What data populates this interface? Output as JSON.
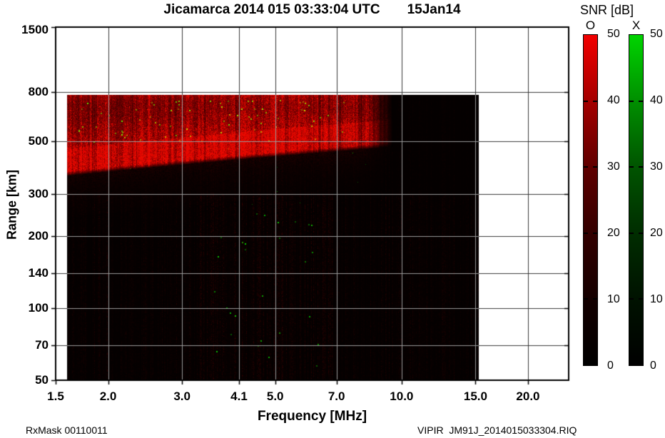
{
  "chart_data": {
    "type": "heatmap",
    "title": "Jicamarca 2014 015 03:33:04 UTC",
    "date_label": "15Jan14",
    "xlabel": "Frequency [MHz]",
    "ylabel": "Range [km]",
    "x_scale": "log",
    "y_scale": "log",
    "xlim": [
      1.5,
      25
    ],
    "ylim": [
      50,
      1500
    ],
    "grid": true,
    "x_ticks": [
      {
        "value": 1.5,
        "label": "1.5"
      },
      {
        "value": 2.0,
        "label": "2.0"
      },
      {
        "value": 3.0,
        "label": "3.0"
      },
      {
        "value": 4.1,
        "label": "4.1"
      },
      {
        "value": 5.0,
        "label": "5.0"
      },
      {
        "value": 7.0,
        "label": "7.0"
      },
      {
        "value": 10.0,
        "label": "10.0"
      },
      {
        "value": 15.0,
        "label": "15.0"
      },
      {
        "value": 20.0,
        "label": "20.0"
      }
    ],
    "y_ticks": [
      {
        "value": 50,
        "label": "50"
      },
      {
        "value": 70,
        "label": "70"
      },
      {
        "value": 100,
        "label": "100"
      },
      {
        "value": 140,
        "label": "140"
      },
      {
        "value": 200,
        "label": "200"
      },
      {
        "value": 300,
        "label": "300"
      },
      {
        "value": 500,
        "label": "500"
      },
      {
        "value": 800,
        "label": "800"
      },
      {
        "value": 1500,
        "label": "1500"
      }
    ],
    "plot_bg_color": "#ffffff",
    "data_bg_color": "#000000",
    "grid_color_on_white": "#3a3a3a",
    "grid_color_on_data": "#9a9a9a",
    "frame_color": "#000000",
    "data_extent": {
      "freq_mhz": [
        1.6,
        15.2
      ],
      "range_km": [
        50,
        780
      ]
    },
    "echo_model": {
      "seed": 20140115,
      "o_mode_color": "#ff0000",
      "x_mode_color": "#00cc00",
      "spread_f_trace": {
        "description": "strong O-mode spread-F echo region; diffuse red from bottom edge up to ~780 km, brightest band just above bottom edge, bottom edge rises with frequency, fading out near 9.5 MHz",
        "freq_mhz": [
          1.6,
          9.5
        ],
        "bottom_edge_freq_mhz": [
          1.6,
          9.3
        ],
        "bottom_edge_range_km": [
          365,
          480
        ],
        "top_range_km": 780,
        "bright_band_thickness_px": 36,
        "fade_freq_mhz": [
          7.9,
          9.55
        ]
      },
      "x_mode_specks": {
        "upper": {
          "count": 75,
          "freq_mhz": [
            1.7,
            7.3
          ],
          "range_km": [
            500,
            745
          ]
        },
        "lower": {
          "count": 28,
          "freq_mhz": [
            3.5,
            6.7
          ],
          "range_km": [
            52,
            270
          ]
        },
        "mid": {
          "count": 10,
          "freq_mhz": [
            2.0,
            9.0
          ],
          "range_km": [
            270,
            490
          ]
        }
      },
      "noise_streaks": {
        "enhanced_freq_mhz": [
          3.3,
          6.9
        ]
      }
    },
    "colorbar": {
      "title": "SNR [dB]",
      "ticks": [
        0,
        10,
        20,
        30,
        40,
        50
      ],
      "tick_max": 50,
      "bars": [
        {
          "label": "O",
          "gradient_top_to_bottom": [
            "#f20000",
            "#a40000",
            "#5f0000",
            "#330000",
            "#140000",
            "#000000"
          ]
        },
        {
          "label": "X",
          "gradient_top_to_bottom": [
            "#00d400",
            "#008f00",
            "#005400",
            "#002d00",
            "#001200",
            "#000000"
          ]
        }
      ]
    }
  },
  "footer": {
    "rx_mask": "RxMask 00110011",
    "file_label": "VIPIR  JM91J_2014015033304.RIQ"
  }
}
